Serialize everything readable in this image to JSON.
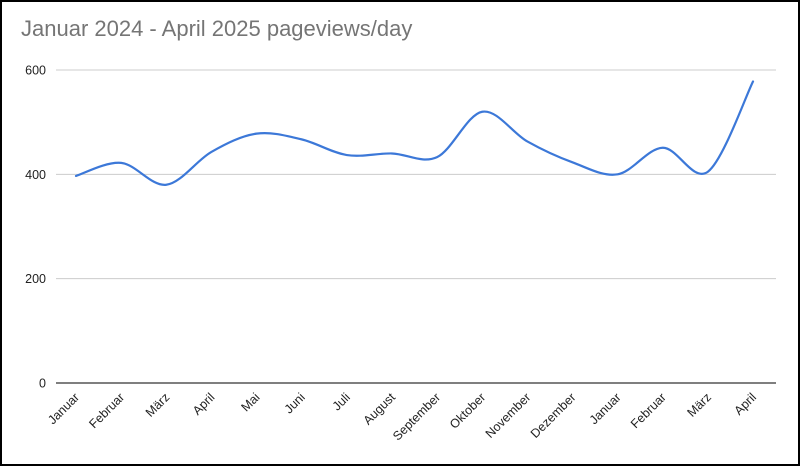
{
  "chart_data": {
    "type": "line",
    "title": "Januar 2024 - April 2025 pageviews/day",
    "xlabel": "",
    "ylabel": "",
    "categories": [
      "Januar",
      "Februar",
      "März",
      "April",
      "Mai",
      "Juni",
      "Juli",
      "August",
      "September",
      "Oktober",
      "November",
      "Dezember",
      "Januar",
      "Februar",
      "März",
      "April"
    ],
    "series": [
      {
        "values": [
          397,
          422,
          380,
          443,
          478,
          467,
          437,
          440,
          433,
          520,
          463,
          423,
          400,
          451,
          405,
          578
        ]
      }
    ],
    "yticks": [
      0,
      200,
      400,
      600
    ],
    "ylim": [
      0,
      600
    ],
    "grid": true,
    "legend": "none",
    "smooth": true,
    "line_color": "#3c78d8",
    "grid_color": "#cccccc",
    "axis_color": "#333333"
  }
}
